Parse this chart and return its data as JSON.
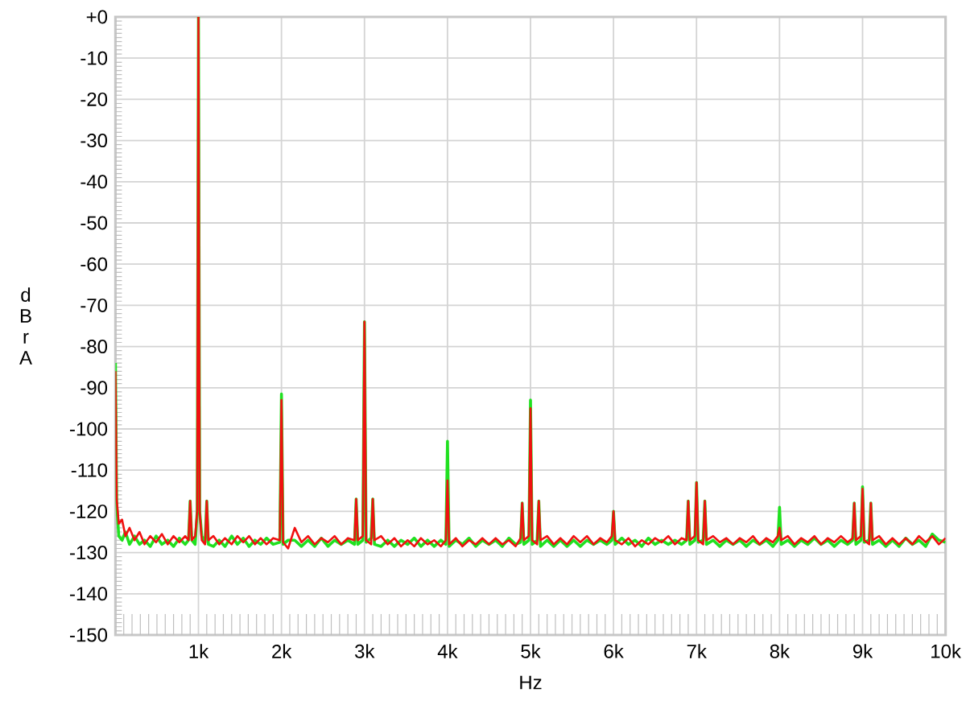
{
  "chart_data": {
    "type": "line",
    "xlabel": "Hz",
    "ylabel": "dBr A",
    "x": [
      0,
      15,
      40,
      80,
      120,
      170,
      230,
      290,
      350,
      420,
      490,
      560,
      630,
      700,
      770,
      840,
      880,
      900,
      920,
      960,
      985,
      1000,
      1015,
      1040,
      1080,
      1100,
      1120,
      1180,
      1250,
      1320,
      1400,
      1470,
      1540,
      1610,
      1680,
      1750,
      1820,
      1900,
      1980,
      2000,
      2020,
      2080,
      2160,
      2240,
      2320,
      2400,
      2480,
      2560,
      2640,
      2720,
      2800,
      2880,
      2900,
      2920,
      2980,
      3000,
      3020,
      3080,
      3100,
      3120,
      3200,
      3280,
      3360,
      3440,
      3520,
      3600,
      3680,
      3760,
      3840,
      3920,
      3980,
      4000,
      4020,
      4100,
      4180,
      4260,
      4340,
      4420,
      4500,
      4580,
      4660,
      4740,
      4820,
      4880,
      4900,
      4920,
      4980,
      5000,
      5020,
      5080,
      5100,
      5120,
      5200,
      5280,
      5360,
      5440,
      5520,
      5600,
      5680,
      5760,
      5840,
      5920,
      5980,
      6000,
      6020,
      6100,
      6180,
      6260,
      6340,
      6420,
      6500,
      6580,
      6660,
      6740,
      6820,
      6880,
      6900,
      6920,
      6980,
      7000,
      7020,
      7080,
      7100,
      7120,
      7200,
      7280,
      7360,
      7440,
      7520,
      7600,
      7680,
      7760,
      7840,
      7920,
      7980,
      8000,
      8020,
      8100,
      8180,
      8260,
      8340,
      8420,
      8500,
      8580,
      8660,
      8740,
      8820,
      8880,
      8900,
      8920,
      8980,
      9000,
      9020,
      9080,
      9100,
      9120,
      9200,
      9280,
      9360,
      9440,
      9520,
      9600,
      9680,
      9760,
      9840,
      9920,
      10000
    ],
    "series": [
      {
        "color": "#20e020",
        "values": [
          -84,
          -118,
          -126,
          -127,
          -125,
          -128,
          -126,
          -128,
          -127,
          -128.5,
          -126,
          -128,
          -127,
          -128.5,
          -126.5,
          -128,
          -127,
          -117.5,
          -127,
          -128,
          -120,
          0,
          -120,
          -126,
          -127.5,
          -117.5,
          -128,
          -128.5,
          -127,
          -128.5,
          -126,
          -128,
          -126.5,
          -128.5,
          -127,
          -128,
          -126.5,
          -128,
          -127.5,
          -91.5,
          -128,
          -127,
          -127,
          -128.5,
          -127,
          -128.5,
          -126.5,
          -128.5,
          -127,
          -128,
          -127,
          -128,
          -117,
          -128,
          -127,
          -74,
          -127.5,
          -126.5,
          -117,
          -128,
          -128.5,
          -127,
          -128.5,
          -127,
          -128,
          -126.5,
          -128.5,
          -127,
          -128.5,
          -127,
          -128,
          -103,
          -128.5,
          -127,
          -128,
          -126.5,
          -128.5,
          -127,
          -128,
          -127,
          -128.5,
          -126.5,
          -128,
          -127.5,
          -118,
          -128,
          -127,
          -93,
          -128,
          -127,
          -117.5,
          -128.5,
          -127,
          -128.5,
          -127,
          -128.5,
          -127,
          -128.5,
          -127,
          -128,
          -127,
          -128,
          -127,
          -120,
          -128,
          -126.5,
          -128,
          -127,
          -128.5,
          -126.5,
          -128,
          -127,
          -128,
          -127,
          -128,
          -127,
          -117.5,
          -128,
          -127,
          -113,
          -127.5,
          -127,
          -117.5,
          -128,
          -127,
          -128.5,
          -127,
          -128,
          -127,
          -128.5,
          -127,
          -128,
          -127,
          -128.5,
          -127,
          -119,
          -128,
          -127,
          -128.5,
          -127,
          -128,
          -126.5,
          -128,
          -127,
          -128.5,
          -127,
          -128,
          -127,
          -118,
          -128,
          -127,
          -114,
          -127.5,
          -127,
          -118,
          -128,
          -127,
          -128.5,
          -127,
          -128.5,
          -126.5,
          -128,
          -127,
          -128.5,
          -125.5,
          -127,
          -127.5
        ]
      },
      {
        "color": "#f01010",
        "values": [
          -86,
          -117,
          -123,
          -122,
          -126,
          -124,
          -127,
          -125,
          -128,
          -126,
          -127.5,
          -125.5,
          -128,
          -126,
          -127.5,
          -126,
          -127,
          -117.5,
          -127,
          -126,
          -120,
          0,
          -120,
          -127,
          -128,
          -117.5,
          -127,
          -126,
          -128,
          -126.5,
          -128,
          -126,
          -127.5,
          -126,
          -128,
          -126.5,
          -128,
          -126.5,
          -127,
          -93,
          -127.5,
          -129,
          -124,
          -127.5,
          -126,
          -128,
          -126.5,
          -127.5,
          -126,
          -128,
          -126.5,
          -127,
          -117,
          -127,
          -126,
          -74,
          -127,
          -128,
          -117,
          -127,
          -126,
          -128,
          -126.5,
          -128.5,
          -127,
          -128.5,
          -126.5,
          -128,
          -127,
          -128.5,
          -127,
          -112.5,
          -128,
          -126.5,
          -128.5,
          -127,
          -128,
          -126.5,
          -128,
          -126.5,
          -128,
          -127,
          -128.5,
          -126.5,
          -118,
          -127,
          -126,
          -95,
          -127,
          -128,
          -117.5,
          -127,
          -126,
          -128,
          -126.5,
          -128,
          -126,
          -127.5,
          -126,
          -128,
          -126.5,
          -127.5,
          -126,
          -120,
          -127,
          -128,
          -126.5,
          -128.5,
          -127,
          -128,
          -126.5,
          -127.5,
          -126,
          -128,
          -126.5,
          -127,
          -117.5,
          -127,
          -126,
          -113,
          -127,
          -128,
          -117.5,
          -127,
          -126,
          -127.5,
          -126.5,
          -128,
          -126.5,
          -127.5,
          -126,
          -128,
          -126.5,
          -127.5,
          -126,
          -124,
          -127,
          -126,
          -128,
          -126.5,
          -127.5,
          -126,
          -128,
          -126.5,
          -127.5,
          -126,
          -127.5,
          -126.5,
          -118,
          -127,
          -126,
          -114.5,
          -127,
          -128,
          -118,
          -127,
          -126,
          -128,
          -126.5,
          -128,
          -126.5,
          -128,
          -126,
          -127.5,
          -126,
          -128,
          -126.5
        ]
      }
    ],
    "xlim": [
      0,
      10000
    ],
    "ylim": [
      -150,
      0
    ],
    "xticks": [
      {
        "value": 1000,
        "label": "1k"
      },
      {
        "value": 2000,
        "label": "2k"
      },
      {
        "value": 3000,
        "label": "3k"
      },
      {
        "value": 4000,
        "label": "4k"
      },
      {
        "value": 5000,
        "label": "5k"
      },
      {
        "value": 6000,
        "label": "6k"
      },
      {
        "value": 7000,
        "label": "7k"
      },
      {
        "value": 8000,
        "label": "8k"
      },
      {
        "value": 9000,
        "label": "9k"
      },
      {
        "value": 10000,
        "label": "10k"
      }
    ],
    "yticks": [
      {
        "value": 0,
        "label": "+0"
      },
      -10,
      -20,
      -30,
      -40,
      -50,
      -60,
      -70,
      -80,
      -90,
      -100,
      -110,
      -120,
      -130,
      -140,
      -150
    ],
    "grid": true,
    "marker": "none",
    "line_style": "solid"
  }
}
